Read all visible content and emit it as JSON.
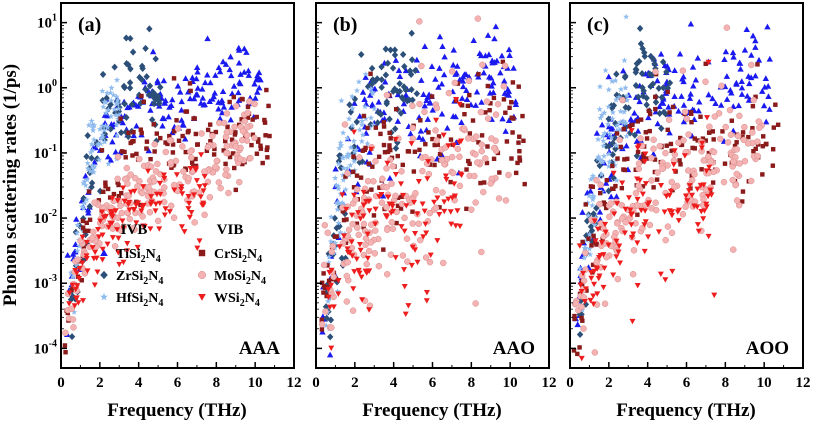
{
  "chart_data": {
    "type": "scatter",
    "ylabel": "Phonon scattering rates (1/ps)",
    "yscale": "log",
    "ylim": [
      5e-05,
      20
    ],
    "yticks": [
      {
        "value": 0.0001,
        "base": "10",
        "exp": "-4"
      },
      {
        "value": 0.001,
        "base": "10",
        "exp": "-3"
      },
      {
        "value": 0.01,
        "base": "10",
        "exp": "-2"
      },
      {
        "value": 0.1,
        "base": "10",
        "exp": "-1"
      },
      {
        "value": 1,
        "base": "10",
        "exp": "0"
      },
      {
        "value": 10,
        "base": "10",
        "exp": "1"
      }
    ],
    "xlim": [
      0,
      12
    ],
    "xticks": [
      "0",
      "2",
      "4",
      "6",
      "8",
      "10",
      "12"
    ],
    "legend": {
      "groups": [
        {
          "heading": "IVB",
          "entries": [
            {
              "name": "TiSi",
              "sub1": "2",
              "mid": "N",
              "sub2": "4",
              "series": "TiSi2N4"
            },
            {
              "name": "ZrSi",
              "sub1": "2",
              "mid": "N",
              "sub2": "4",
              "series": "ZrSi2N4"
            },
            {
              "name": "HfSi",
              "sub1": "2",
              "mid": "N",
              "sub2": "4",
              "series": "HfSi2N4"
            }
          ]
        },
        {
          "heading": "VIB",
          "entries": [
            {
              "name": "CrSi",
              "sub1": "2",
              "mid": "N",
              "sub2": "4",
              "series": "CrSi2N4"
            },
            {
              "name": "MoSi",
              "sub1": "2",
              "mid": "N",
              "sub2": "4",
              "series": "MoSi2N4"
            },
            {
              "name": "WSi",
              "sub1": "2",
              "mid": "N",
              "sub2": "4",
              "series": "WSi2N4"
            }
          ]
        }
      ]
    },
    "series_styles": {
      "TiSi2N4": {
        "color": "#1a1af0",
        "marker": "triangle-up"
      },
      "ZrSi2N4": {
        "color": "#2b4f78",
        "marker": "diamond"
      },
      "HfSi2N4": {
        "color": "#8fbbee",
        "marker": "star"
      },
      "CrSi2N4": {
        "color": "#8b1a1a",
        "marker": "square"
      },
      "MoSi2N4": {
        "color": "#f4b2b2",
        "marker": "circle"
      },
      "WSi2N4": {
        "color": "#ee1c1c",
        "marker": "triangle-down"
      }
    },
    "panels": [
      {
        "tag": "(a)",
        "stacking": "AAA",
        "xlabel": "Frequency (THz)",
        "show_legend": true
      },
      {
        "tag": "(b)",
        "stacking": "AAO",
        "xlabel": "Frequency (THz)",
        "show_legend": false
      },
      {
        "tag": "(c)",
        "stacking": "AOO",
        "xlabel": "Frequency (THz)",
        "show_legend": false
      }
    ],
    "series_trends": [
      {
        "series": "TiSi2N4",
        "points": [
          [
            0.3,
            0.0004
          ],
          [
            1.0,
            0.01
          ],
          [
            2.0,
            0.12
          ],
          [
            4.0,
            0.6
          ],
          [
            6.0,
            0.7
          ],
          [
            8.0,
            0.9
          ],
          [
            10.3,
            1.5
          ]
        ]
      },
      {
        "series": "ZrSi2N4",
        "points": [
          [
            0.5,
            0.0003
          ],
          [
            1.5,
            0.05
          ],
          [
            2.5,
            0.6
          ],
          [
            3.5,
            1.2
          ],
          [
            4.5,
            1.3
          ],
          [
            5.2,
            0.6
          ]
        ]
      },
      {
        "series": "HfSi2N4",
        "points": [
          [
            0.5,
            0.0005
          ],
          [
            1.5,
            0.1
          ],
          [
            2.0,
            0.2
          ],
          [
            2.5,
            0.4
          ],
          [
            3.0,
            0.4
          ]
        ]
      },
      {
        "series": "CrSi2N4",
        "points": [
          [
            0.2,
            0.0002
          ],
          [
            1.0,
            0.003
          ],
          [
            2.0,
            0.03
          ],
          [
            4.0,
            0.12
          ],
          [
            6.0,
            0.15
          ],
          [
            8.0,
            0.15
          ],
          [
            10.0,
            0.18
          ],
          [
            10.8,
            0.18
          ]
        ]
      },
      {
        "series": "MoSi2N4",
        "points": [
          [
            0.2,
            0.0002
          ],
          [
            1.0,
            0.002
          ],
          [
            2.0,
            0.008
          ],
          [
            4.0,
            0.025
          ],
          [
            6.0,
            0.05
          ],
          [
            8.0,
            0.08
          ],
          [
            10.0,
            0.15
          ]
        ]
      },
      {
        "series": "WSi2N4",
        "points": [
          [
            0.4,
            0.0005
          ],
          [
            2.0,
            0.005
          ],
          [
            4.0,
            0.012
          ],
          [
            6.0,
            0.02
          ],
          [
            7.5,
            0.03
          ]
        ]
      }
    ]
  }
}
